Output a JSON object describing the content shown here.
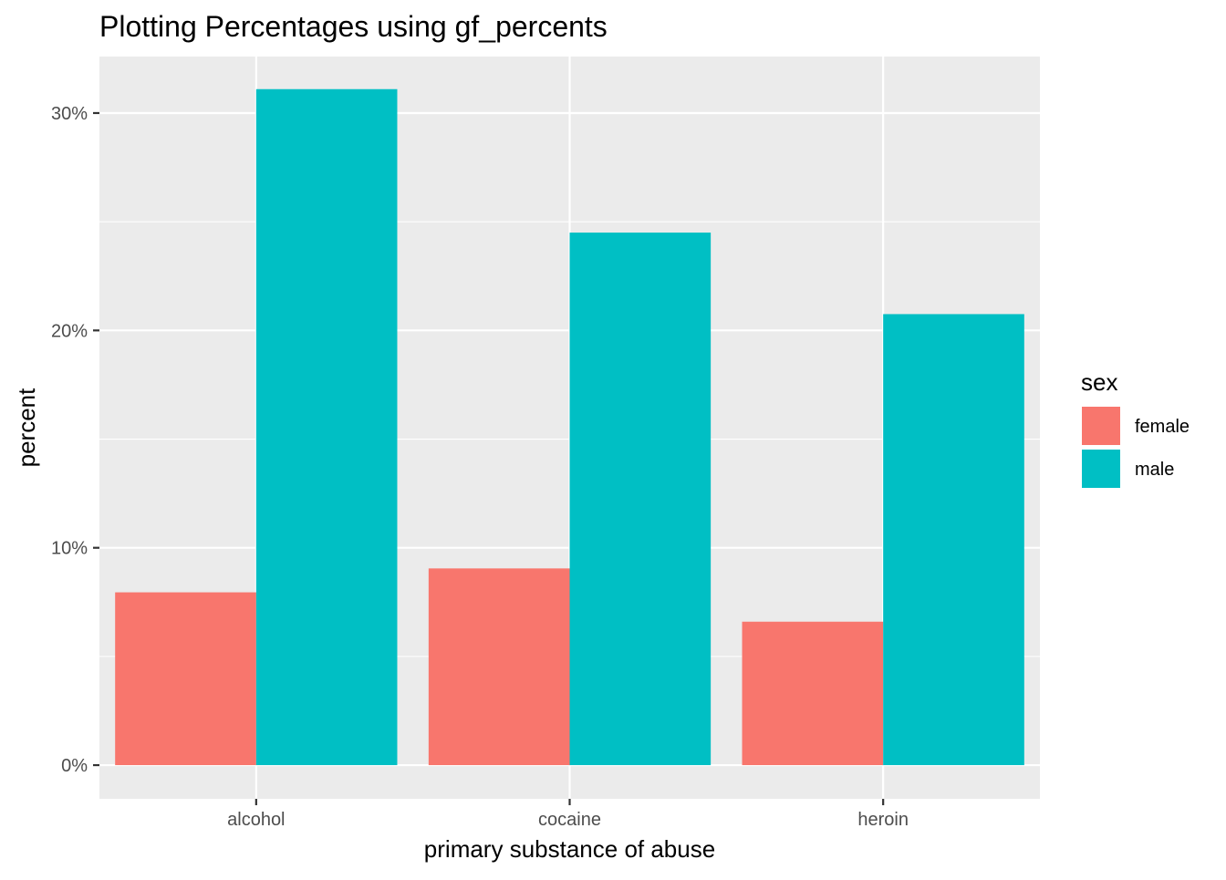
{
  "chart_data": {
    "type": "bar",
    "title": "Plotting Percentages using gf_percents",
    "xlabel": "primary substance of abuse",
    "ylabel": "percent",
    "categories": [
      "alcohol",
      "cocaine",
      "heroin"
    ],
    "series": [
      {
        "name": "female",
        "color": "#F8766D",
        "values": [
          7.95,
          9.05,
          6.6
        ]
      },
      {
        "name": "male",
        "color": "#00BFC4",
        "values": [
          31.1,
          24.5,
          20.75
        ]
      }
    ],
    "ylim": [
      -1.55,
      32.6
    ],
    "y_ticks": [
      {
        "value": 0,
        "label": "0%"
      },
      {
        "value": 10,
        "label": "10%"
      },
      {
        "value": 20,
        "label": "20%"
      },
      {
        "value": 30,
        "label": "30%"
      }
    ],
    "grid": true,
    "panel_background": "#EBEBEB",
    "grid_color": "#FFFFFF",
    "legend": {
      "title": "sex",
      "placement": "right"
    }
  }
}
